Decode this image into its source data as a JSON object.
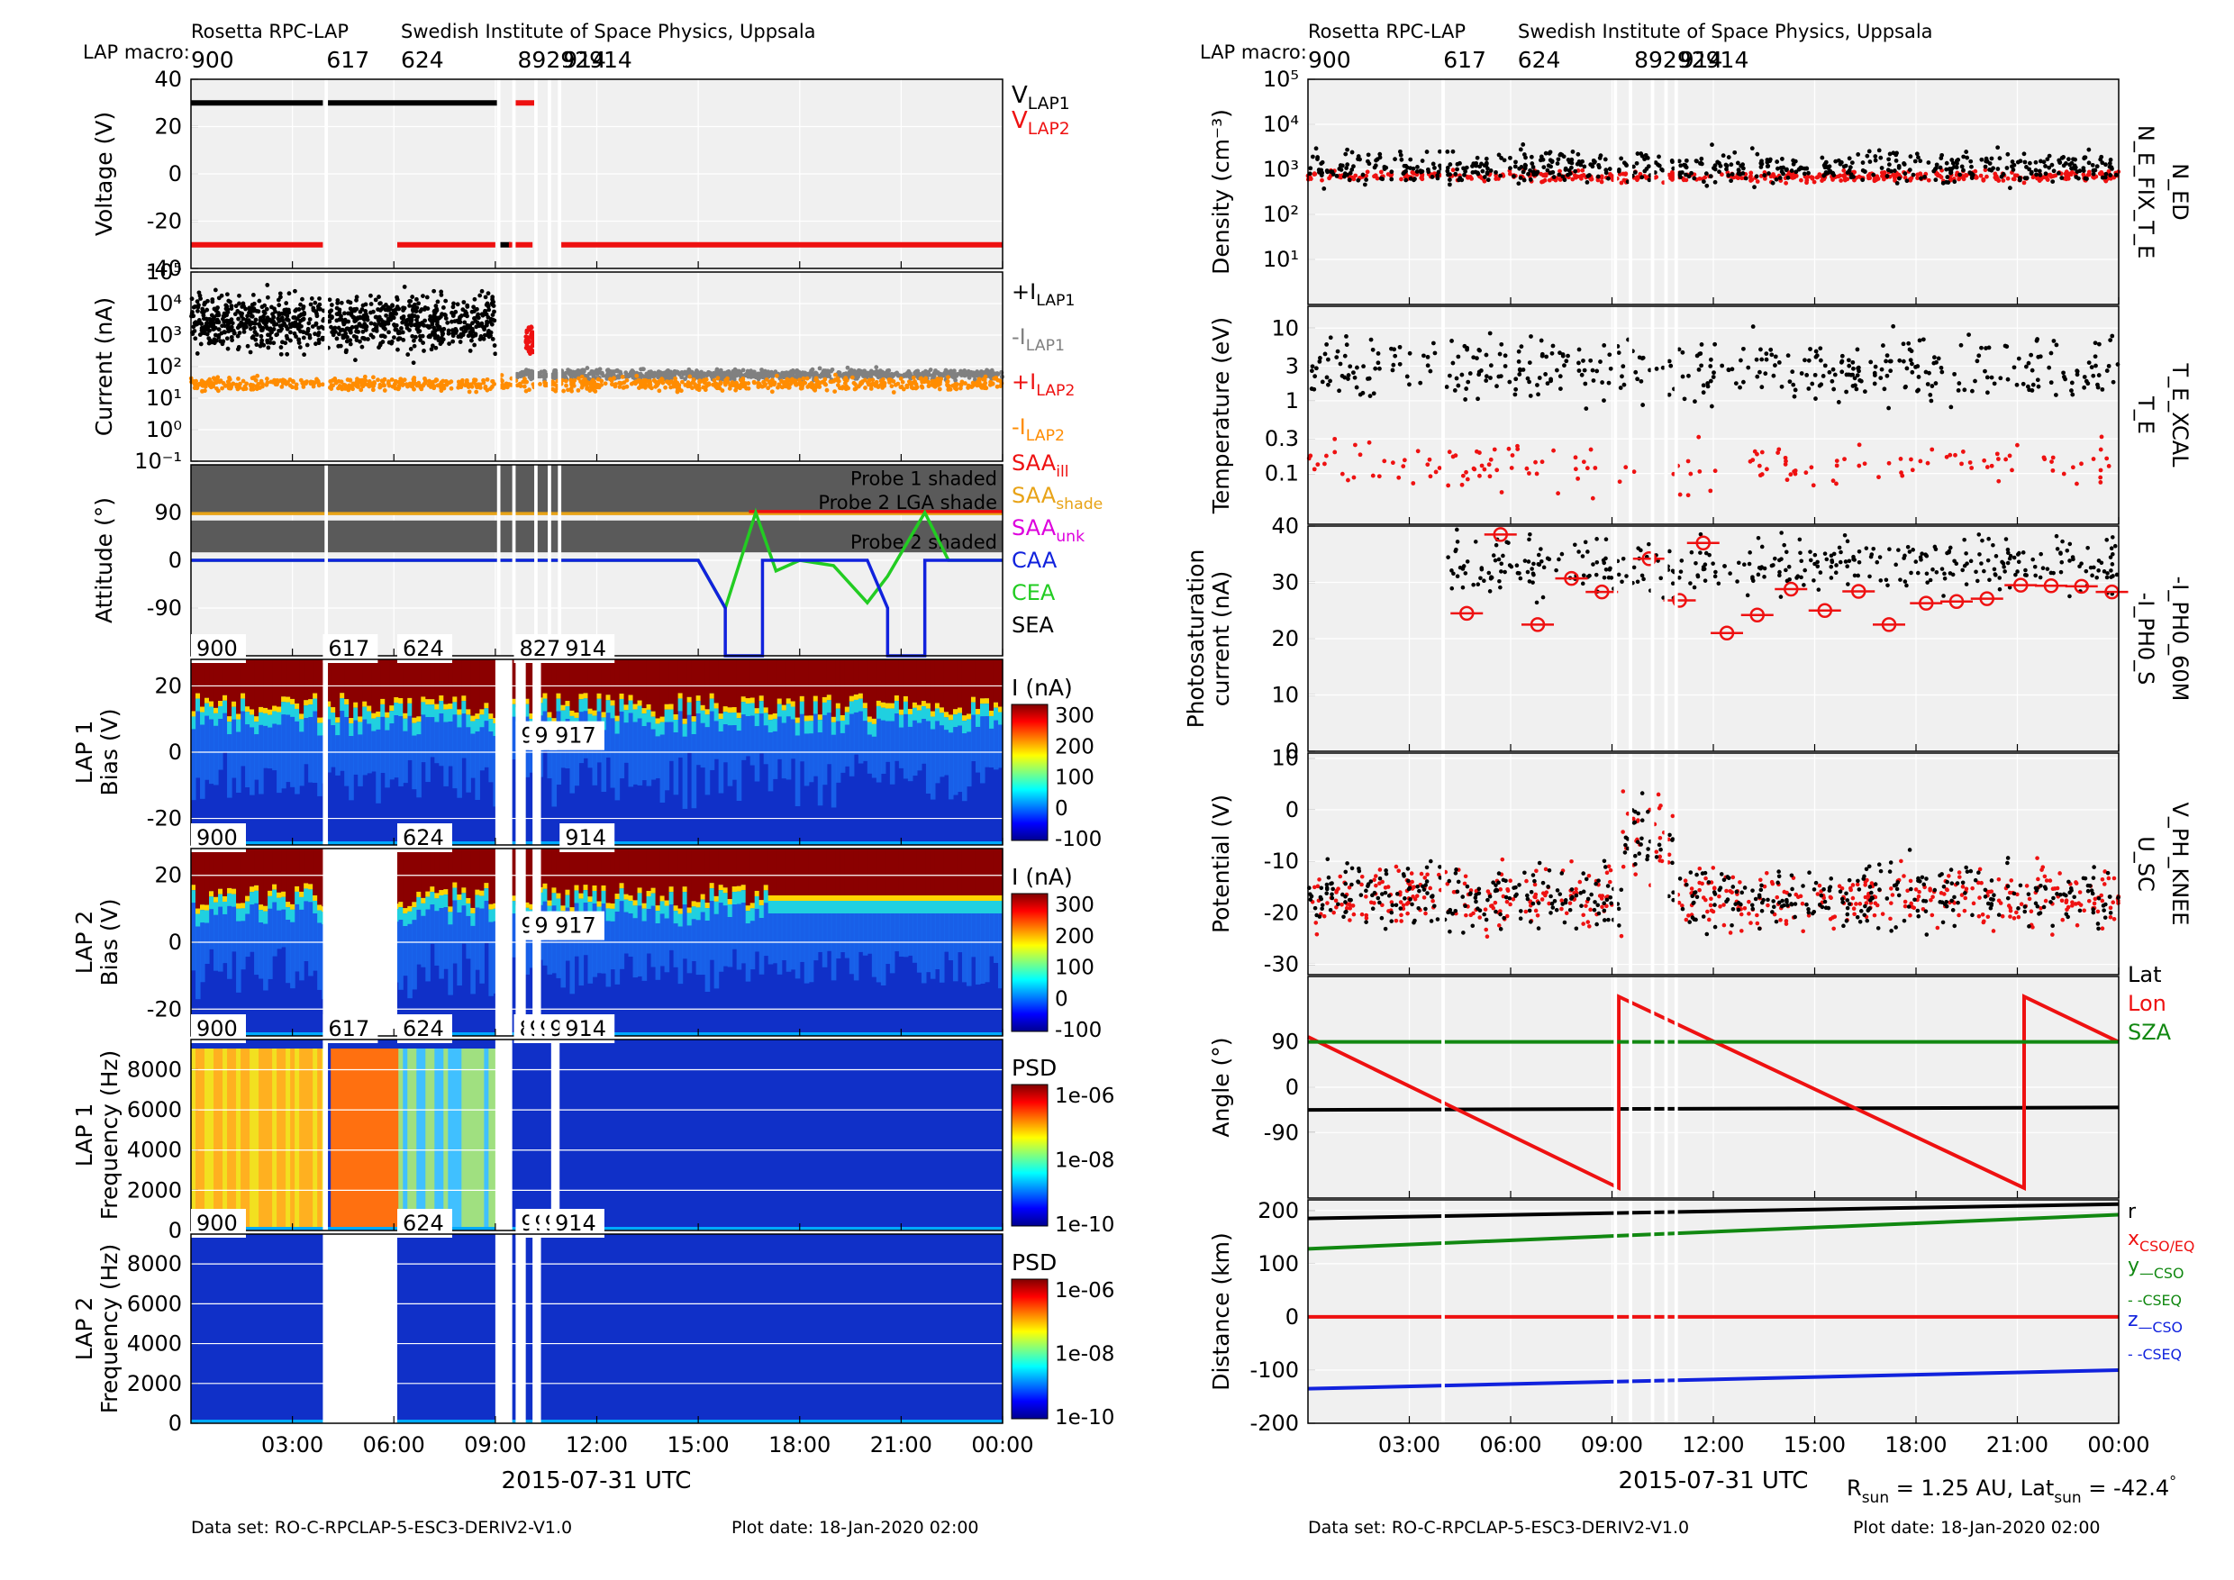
{
  "header": {
    "left_title": "Rosetta RPC-LAP",
    "institute": "Swedish Institute of Space Physics, Uppsala",
    "macro_label": "LAP macro:",
    "macros": [
      {
        "label": "900",
        "t": 0
      },
      {
        "label": "617",
        "t": 3.9
      },
      {
        "label": "624",
        "t": 6.1
      },
      {
        "label": "827",
        "t": 9.55
      },
      {
        "label": "914",
        "t": 10.9
      }
    ],
    "macro_overlap_label": "89292914"
  },
  "footer": {
    "dataset_label": "Data set: RO-C-RPCLAP-5-ESC3-DERIV2-V1.0",
    "plot_date_label": "Plot date: 18-Jan-2020 02:00",
    "x_axis_label": "2015-07-31 UTC",
    "rsun_text": "R",
    "rsun_sub": "sun",
    "rsun_value": " = 1.25 AU, Lat",
    "lat_sub": "sun",
    "lat_value": " = -42.4",
    "lat_deg": "°"
  },
  "colors": {
    "black": "#000000",
    "red": "#ee1111",
    "gray": "#808080",
    "orange": "#ff8c00",
    "green": "#22cc22",
    "dark_green": "#118811",
    "blue": "#1122dd",
    "magenta": "#dd00dd",
    "gold": "#e8a317",
    "panel_bg": "#f0f0f0",
    "shade": "#5a5a5a"
  },
  "x_axis": {
    "start": "2015-07-31 00:00",
    "end": "2015-08-01 00:00",
    "ticks": [
      "03:00",
      "06:00",
      "09:00",
      "12:00",
      "15:00",
      "18:00",
      "21:00",
      "00:00"
    ],
    "tick_hours": [
      3,
      6,
      9,
      12,
      15,
      18,
      21,
      24
    ],
    "gaps": [
      [
        3.95,
        4.05
      ],
      [
        9.05,
        9.15
      ],
      [
        9.5,
        9.6
      ],
      [
        10.15,
        10.25
      ],
      [
        10.55,
        10.65
      ],
      [
        10.85,
        10.95
      ]
    ]
  },
  "chart_data": [
    {
      "id": "voltage",
      "type": "scatter",
      "ylabel": "Voltage (V)",
      "ylim": [
        -40,
        40
      ],
      "yticks": [
        "40",
        "20",
        "0",
        "-20",
        "-40"
      ],
      "legend": [
        {
          "main": "V",
          "sub": "LAP1",
          "color": "#000000"
        },
        {
          "main": "V",
          "sub": "LAP2",
          "color": "#ee1111"
        }
      ],
      "series": [
        {
          "name": "V_LAP1",
          "color": "#000000",
          "segments": [
            {
              "x": [
                0,
                3.9
              ],
              "y": 30
            },
            {
              "x": [
                4.05,
                9.05
              ],
              "y": 30
            },
            {
              "x": [
                9.15,
                9.45
              ],
              "y": -30
            }
          ]
        },
        {
          "name": "V_LAP2",
          "color": "#ee1111",
          "segments": [
            {
              "x": [
                0,
                3.9
              ],
              "y": -30
            },
            {
              "x": [
                6.1,
                9.0
              ],
              "y": -30
            },
            {
              "x": [
                9.6,
                10.15
              ],
              "y": 30
            },
            {
              "x": [
                9.4,
                10.1
              ],
              "y": -30
            },
            {
              "x": [
                10.9,
                24
              ],
              "y": -30
            }
          ]
        }
      ]
    },
    {
      "id": "current",
      "type": "scatter",
      "ylabel": "Current (nA)",
      "yscale": "log",
      "ylim": [
        0.1,
        100000
      ],
      "yticks": [
        "10⁵",
        "10⁴",
        "10³",
        "10²",
        "10¹",
        "10⁰",
        "10⁻¹"
      ],
      "legend": [
        {
          "main": "+I",
          "sub": "LAP1",
          "color": "#000000"
        },
        {
          "main": "-I",
          "sub": "LAP1",
          "color": "#808080"
        },
        {
          "main": "+I",
          "sub": "LAP2",
          "color": "#ee1111"
        },
        {
          "main": "-I",
          "sub": "LAP2",
          "color": "#ff8c00"
        }
      ],
      "series": [
        {
          "name": "+I LAP1",
          "color": "#000000",
          "x_range": [
            0,
            9.0
          ],
          "log_center": 3.4,
          "log_spread": 0.8
        },
        {
          "name": "-I LAP1",
          "color": "#808080",
          "x_range": [
            9.5,
            24
          ],
          "log_center": 1.75,
          "log_spread": 0.15
        },
        {
          "name": "+I LAP2",
          "color": "#ee1111",
          "x_range": [
            9.9,
            10.2
          ],
          "log_center": 2.8,
          "log_spread": 0.5
        },
        {
          "name": "-I LAP2",
          "color": "#ff8c00",
          "x_range": [
            0,
            24
          ],
          "log_center": 1.45,
          "log_spread": 0.2
        }
      ]
    },
    {
      "id": "attitude",
      "type": "line",
      "ylabel": "Attitude (°)",
      "ylim": [
        -180,
        180
      ],
      "yticks": [
        "90",
        "0",
        "-90"
      ],
      "shaded_bands": [
        {
          "label": "Probe 1 shaded",
          "y": [
            135,
            180
          ]
        },
        {
          "label": "Probe 2 LGA shade",
          "y": [
            90,
            135
          ]
        },
        {
          "label": "Probe 2 shaded",
          "y": [
            15,
            75
          ]
        }
      ],
      "legend": [
        {
          "main": "SAA",
          "sub": "ill",
          "color": "#ee1111"
        },
        {
          "main": "SAA",
          "sub": "shade",
          "color": "#e8a317"
        },
        {
          "main": "SAA",
          "sub": "unk",
          "color": "#dd00dd"
        },
        {
          "main": "CAA",
          "sub": "",
          "color": "#1122dd"
        },
        {
          "main": "CEA",
          "sub": "",
          "color": "#22cc22"
        },
        {
          "main": "SEA",
          "sub": "",
          "color": "#000000"
        }
      ],
      "series": [
        {
          "name": "SAA_shade",
          "color": "#e8a317",
          "x": [
            0,
            24
          ],
          "y": [
            88,
            88
          ]
        },
        {
          "name": "SAA_ill",
          "color": "#ee1111",
          "x": [
            16.5,
            24
          ],
          "y": [
            92,
            92
          ]
        },
        {
          "name": "CEA",
          "color": "#22cc22",
          "x": [
            0,
            15.0,
            15.8,
            16.7,
            17.3,
            18.0,
            19.0,
            20.0,
            20.6,
            21.7,
            22.4,
            24
          ],
          "y": [
            0,
            0,
            -90,
            90,
            -20,
            0,
            -10,
            -80,
            -30,
            90,
            0,
            0
          ]
        },
        {
          "name": "CAA",
          "color": "#1122dd",
          "x": [
            0,
            15.0,
            15.8,
            15.8,
            16.9,
            16.9,
            18.0,
            20.0,
            20.6,
            20.6,
            21.7,
            21.7,
            24
          ],
          "y": [
            0,
            0,
            -90,
            -180,
            -180,
            0,
            0,
            0,
            -90,
            -180,
            -180,
            0,
            0
          ]
        }
      ]
    },
    {
      "id": "lap1_sweep",
      "type": "heatmap",
      "panel_label": "LAP 1",
      "ylabel": "Bias (V)",
      "ylim": [
        -28,
        28
      ],
      "yticks": [
        "20",
        "0",
        "-20"
      ],
      "colorbar_label": "I (nA)",
      "colorbar_ticks": [
        "300",
        "200",
        "100",
        "0",
        "-100"
      ],
      "macro_labels": [
        {
          "label": "900",
          "t": 0
        },
        {
          "label": "617",
          "t": 3.9
        },
        {
          "label": "624",
          "t": 6.1
        },
        {
          "label": "827",
          "t": 9.55
        },
        {
          "label": "914",
          "t": 10.9
        }
      ],
      "inner_labels": [
        {
          "label": "9",
          "t": 9.6
        },
        {
          "label": "9",
          "t": 10.0
        },
        {
          "label": "917",
          "t": 10.6
        }
      ],
      "blank_intervals": [
        [
          3.9,
          4.05
        ],
        [
          9.0,
          9.5
        ],
        [
          9.6,
          9.9
        ],
        [
          10.1,
          10.35
        ]
      ]
    },
    {
      "id": "lap2_sweep",
      "type": "heatmap",
      "panel_label": "LAP 2",
      "ylabel": "Bias (V)",
      "ylim": [
        -28,
        28
      ],
      "yticks": [
        "20",
        "0",
        "-20"
      ],
      "colorbar_label": "I (nA)",
      "colorbar_ticks": [
        "300",
        "200",
        "100",
        "0",
        "-100"
      ],
      "macro_labels": [
        {
          "label": "900",
          "t": 0
        },
        {
          "label": "624",
          "t": 6.1
        },
        {
          "label": "914",
          "t": 10.9
        }
      ],
      "inner_labels": [
        {
          "label": "9",
          "t": 9.6
        },
        {
          "label": "9",
          "t": 10.0
        },
        {
          "label": "917",
          "t": 10.6
        }
      ],
      "blank_intervals": [
        [
          3.9,
          6.1
        ],
        [
          9.0,
          9.5
        ],
        [
          9.6,
          9.9
        ],
        [
          10.1,
          10.35
        ]
      ]
    },
    {
      "id": "lap1_psd",
      "type": "heatmap",
      "panel_label": "LAP 1",
      "ylabel": "Frequency (Hz)",
      "ylim": [
        0,
        9500
      ],
      "yticks": [
        "8000",
        "6000",
        "4000",
        "2000",
        "0"
      ],
      "colorbar_label": "PSD",
      "colorbar_ticks": [
        "1e-06",
        "1e-08",
        "1e-10"
      ],
      "macro_labels": [
        {
          "label": "900",
          "t": 0
        },
        {
          "label": "617",
          "t": 3.9
        },
        {
          "label": "624",
          "t": 6.1
        },
        {
          "label": "8",
          "t": 9.55
        },
        {
          "label": "9",
          "t": 9.85
        },
        {
          "label": "9",
          "t": 10.15
        },
        {
          "label": "9",
          "t": 10.45
        },
        {
          "label": "914",
          "t": 10.9
        }
      ],
      "inner_labels": [],
      "blank_intervals": [
        [
          3.9,
          4.05
        ],
        [
          9.0,
          9.5
        ],
        [
          10.65,
          10.9
        ]
      ]
    },
    {
      "id": "lap2_psd",
      "type": "heatmap",
      "panel_label": "LAP 2",
      "ylabel": "Frequency (Hz)",
      "ylim": [
        0,
        9500
      ],
      "yticks": [
        "8000",
        "6000",
        "4000",
        "2000",
        "0"
      ],
      "colorbar_label": "PSD",
      "colorbar_ticks": [
        "1e-06",
        "1e-08",
        "1e-10"
      ],
      "macro_labels": [
        {
          "label": "900",
          "t": 0
        },
        {
          "label": "624",
          "t": 6.1
        },
        {
          "label": "9",
          "t": 9.6
        },
        {
          "label": "9",
          "t": 10.0
        },
        {
          "label": "9",
          "t": 10.3
        },
        {
          "label": "914",
          "t": 10.6
        }
      ],
      "inner_labels": [],
      "blank_intervals": [
        [
          3.9,
          6.1
        ],
        [
          9.0,
          9.5
        ],
        [
          9.6,
          9.9
        ],
        [
          10.1,
          10.35
        ]
      ]
    },
    {
      "id": "density",
      "type": "scatter",
      "ylabel": "Density (cm⁻³)",
      "yscale": "log",
      "ylim": [
        1,
        100000
      ],
      "yticks": [
        "10⁵",
        "10⁴",
        "10³",
        "10²",
        "10¹"
      ],
      "side_labels": [
        {
          "text": "N_ED",
          "color": "#ee1111"
        },
        {
          "text": "N_E_FIX_T_E",
          "color": "#000000"
        }
      ],
      "series": [
        {
          "name": "N_ED",
          "color": "#ee1111",
          "log_center": 2.85,
          "log_spread": 0.12
        },
        {
          "name": "N_E_FIX_T_E",
          "color": "#000000",
          "log_center": 3.05,
          "log_spread": 0.35
        }
      ]
    },
    {
      "id": "temperature",
      "type": "scatter",
      "ylabel": "Temperature (eV)",
      "yscale": "log",
      "ylim": [
        0.02,
        20
      ],
      "yticks": [
        "10",
        "3",
        "1",
        "0.3",
        "0.1"
      ],
      "ytick_values": [
        10,
        3,
        1,
        0.3,
        0.1
      ],
      "side_labels": [
        {
          "text": "T_E_XCAL",
          "color": "#ee1111"
        },
        {
          "text": "T_E",
          "color": "#000000"
        }
      ],
      "series": [
        {
          "name": "T_E_XCAL",
          "color": "#ee1111",
          "log_center": -0.9,
          "log_spread": 0.35
        },
        {
          "name": "T_E",
          "color": "#000000",
          "log_center": 0.45,
          "log_spread": 0.45
        }
      ]
    },
    {
      "id": "photosaturation",
      "type": "scatter",
      "ylabel_lines": [
        "Photosaturation",
        "current (nA)"
      ],
      "ylim": [
        0,
        40
      ],
      "yticks": [
        "40",
        "30",
        "20",
        "10",
        "0"
      ],
      "side_labels": [
        {
          "text": "-I_PH0_60M",
          "color": "#ee1111"
        },
        {
          "text": "-I_PH0_S",
          "color": "#000000"
        }
      ],
      "series": [
        {
          "name": "-I_PH0_60M",
          "color": "#ee1111",
          "x": [
            4.7,
            5.7,
            6.8,
            7.8,
            8.7,
            10.1,
            11.0,
            11.7,
            12.4,
            13.3,
            14.3,
            15.3,
            16.3,
            17.2,
            18.3,
            19.2,
            20.1,
            21.1,
            22.0,
            22.9,
            23.8
          ],
          "y": [
            24.5,
            38.5,
            22.5,
            30.7,
            28.3,
            34.2,
            26.8,
            37,
            21,
            24.2,
            28.8,
            25,
            28.4,
            22.5,
            26.3,
            26.6,
            27.1,
            29.5,
            29.4,
            29.3,
            28.3
          ]
        },
        {
          "name": "-I_PH0_S",
          "color": "#000000",
          "y_center": 33,
          "y_spread": 5
        }
      ]
    },
    {
      "id": "potential",
      "type": "scatter",
      "ylabel": "Potential (V)",
      "ylim": [
        -32,
        11
      ],
      "yticks": [
        "10",
        "0",
        "-10",
        "-20",
        "-30"
      ],
      "side_labels": [
        {
          "text": "V_PH_KNEE",
          "color": "#ee1111"
        },
        {
          "text": "U_SC",
          "color": "#000000"
        }
      ],
      "series": [
        {
          "name": "V_PH_KNEE",
          "color": "#ee1111",
          "y_center": -17,
          "y_spread": 6
        },
        {
          "name": "U_SC",
          "color": "#000000",
          "y_center": -17,
          "y_spread": 6
        }
      ]
    },
    {
      "id": "angle",
      "type": "line",
      "ylabel": "Angle (°)",
      "ylim": [
        -220,
        220
      ],
      "yticks": [
        "90",
        "0",
        "-90"
      ],
      "legend": [
        {
          "text": "Lat",
          "color": "#000000"
        },
        {
          "text": "Lon",
          "color": "#ee1111"
        },
        {
          "text": "SZA",
          "color": "#118811"
        }
      ],
      "series": [
        {
          "name": "Lat",
          "color": "#000000",
          "x": [
            0,
            24
          ],
          "y": [
            -45,
            -40
          ]
        },
        {
          "name": "Lon",
          "color": "#ee1111",
          "x": [
            0,
            9.2,
            9.2,
            21.2,
            21.2,
            24
          ],
          "y": [
            100,
            -200,
            180,
            -200,
            180,
            90
          ]
        },
        {
          "name": "SZA",
          "color": "#118811",
          "x": [
            0,
            24
          ],
          "y": [
            90,
            90
          ]
        }
      ]
    },
    {
      "id": "distance",
      "type": "line",
      "ylabel": "Distance (km)",
      "ylim": [
        -200,
        220
      ],
      "yticks": [
        "200",
        "100",
        "0",
        "-100",
        "-200"
      ],
      "legend": [
        {
          "main": "r",
          "sub": "",
          "color": "#000000"
        },
        {
          "main": "x",
          "sub": "CSO/EQ",
          "color": "#ee1111"
        },
        {
          "main": "y",
          "sub": "—CSO",
          "color": "#118811"
        },
        {
          "main": "",
          "sub": "- -CSEQ",
          "color": "#118811"
        },
        {
          "main": "z",
          "sub": "—CSO",
          "color": "#1122dd"
        },
        {
          "main": "",
          "sub": "- -CSEQ",
          "color": "#1122dd"
        }
      ],
      "series": [
        {
          "name": "r",
          "color": "#000000",
          "x": [
            0,
            24
          ],
          "y": [
            185,
            212
          ]
        },
        {
          "name": "x",
          "color": "#ee1111",
          "x": [
            0,
            24
          ],
          "y": [
            0,
            0
          ]
        },
        {
          "name": "y",
          "color": "#118811",
          "x": [
            0,
            24
          ],
          "y": [
            128,
            192
          ]
        },
        {
          "name": "z",
          "color": "#1122dd",
          "x": [
            0,
            24
          ],
          "y": [
            -135,
            -100
          ]
        }
      ]
    }
  ]
}
